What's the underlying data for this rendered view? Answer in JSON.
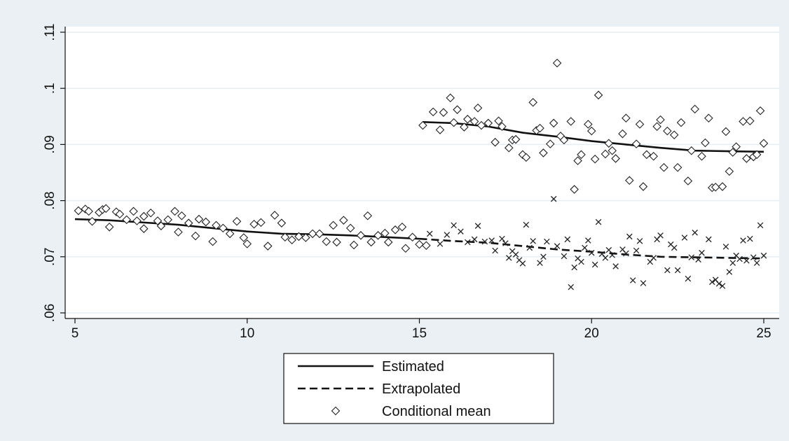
{
  "chart_data": {
    "type": "scatter",
    "title": "",
    "xlabel": "",
    "ylabel": "",
    "xlim": [
      5,
      25
    ],
    "ylim": [
      0.06,
      0.11
    ],
    "x_ticks": [
      5,
      10,
      15,
      20,
      25
    ],
    "x_tick_labels": [
      "5",
      "10",
      "15",
      "20",
      "25"
    ],
    "y_ticks": [
      0.06,
      0.07,
      0.08,
      0.09,
      0.1,
      0.11
    ],
    "y_tick_labels": [
      ".06",
      ".07",
      ".08",
      ".09",
      ".1",
      ".11"
    ],
    "grid": "horizontal",
    "legend_position": "bottom",
    "colors": {
      "outer_background": "#eaf0f3",
      "plot_background": "#ffffff",
      "grid": "#e6eef2",
      "ink": "#111111"
    },
    "series": [
      {
        "name": "Estimated",
        "style": "solid-line",
        "segments": [
          {
            "x": [
              5.0,
              6.0,
              7.0,
              8.0,
              9.0,
              10.0,
              11.0,
              12.0,
              13.0,
              14.0,
              15.0
            ],
            "y": [
              0.0767,
              0.0765,
              0.0761,
              0.0757,
              0.0751,
              0.0745,
              0.0741,
              0.074,
              0.0738,
              0.0735,
              0.0732
            ]
          },
          {
            "x": [
              15.1,
              16.0,
              17.0,
              18.0,
              19.0,
              20.0,
              21.0,
              22.0,
              23.0,
              24.0,
              25.0
            ],
            "y": [
              0.094,
              0.0938,
              0.0932,
              0.0921,
              0.0914,
              0.0906,
              0.09,
              0.0894,
              0.0889,
              0.0888,
              0.0887
            ]
          }
        ]
      },
      {
        "name": "Extrapolated",
        "style": "dashed-line",
        "x": [
          15.0,
          16.0,
          17.0,
          18.0,
          19.0,
          20.0,
          21.0,
          22.0,
          23.0,
          24.0,
          25.0
        ],
        "y": [
          0.0732,
          0.0728,
          0.0725,
          0.0719,
          0.0713,
          0.0709,
          0.0704,
          0.07,
          0.0699,
          0.0698,
          0.0697
        ]
      },
      {
        "name": "Conditional mean",
        "marker": "diamond",
        "points": [
          [
            5.1,
            0.0782
          ],
          [
            5.3,
            0.0785
          ],
          [
            5.4,
            0.0781
          ],
          [
            5.5,
            0.0763
          ],
          [
            5.7,
            0.0779
          ],
          [
            5.8,
            0.0784
          ],
          [
            5.9,
            0.0786
          ],
          [
            6.0,
            0.0753
          ],
          [
            6.2,
            0.078
          ],
          [
            6.3,
            0.0776
          ],
          [
            6.5,
            0.0766
          ],
          [
            6.7,
            0.0781
          ],
          [
            6.8,
            0.0764
          ],
          [
            7.0,
            0.0772
          ],
          [
            7.0,
            0.075
          ],
          [
            7.2,
            0.0778
          ],
          [
            7.4,
            0.0764
          ],
          [
            7.5,
            0.0755
          ],
          [
            7.7,
            0.0766
          ],
          [
            7.9,
            0.0781
          ],
          [
            8.0,
            0.0744
          ],
          [
            8.1,
            0.0773
          ],
          [
            8.3,
            0.076
          ],
          [
            8.5,
            0.0737
          ],
          [
            8.6,
            0.0767
          ],
          [
            8.8,
            0.0762
          ],
          [
            9.0,
            0.0727
          ],
          [
            9.1,
            0.0756
          ],
          [
            9.3,
            0.0751
          ],
          [
            9.5,
            0.0741
          ],
          [
            9.7,
            0.0763
          ],
          [
            9.9,
            0.0734
          ],
          [
            10.0,
            0.0723
          ],
          [
            10.2,
            0.0758
          ],
          [
            10.4,
            0.0761
          ],
          [
            10.6,
            0.0719
          ],
          [
            10.8,
            0.0774
          ],
          [
            11.0,
            0.076
          ],
          [
            11.1,
            0.0735
          ],
          [
            11.3,
            0.073
          ],
          [
            11.5,
            0.0736
          ],
          [
            11.7,
            0.0734
          ],
          [
            11.9,
            0.0741
          ],
          [
            12.1,
            0.0741
          ],
          [
            12.3,
            0.0727
          ],
          [
            12.5,
            0.0756
          ],
          [
            12.6,
            0.0726
          ],
          [
            12.8,
            0.0765
          ],
          [
            13.0,
            0.0751
          ],
          [
            13.1,
            0.0721
          ],
          [
            13.3,
            0.0738
          ],
          [
            13.5,
            0.0773
          ],
          [
            13.6,
            0.0726
          ],
          [
            13.8,
            0.0738
          ],
          [
            14.0,
            0.0742
          ],
          [
            14.1,
            0.0726
          ],
          [
            14.3,
            0.0748
          ],
          [
            14.5,
            0.0753
          ],
          [
            14.6,
            0.0715
          ],
          [
            14.8,
            0.0735
          ],
          [
            15.0,
            0.0722
          ],
          [
            15.2,
            0.072
          ],
          [
            15.1,
            0.0934
          ],
          [
            15.4,
            0.0958
          ],
          [
            15.6,
            0.0926
          ],
          [
            15.7,
            0.0957
          ],
          [
            15.9,
            0.0983
          ],
          [
            16.0,
            0.0939
          ],
          [
            16.1,
            0.0962
          ],
          [
            16.3,
            0.0931
          ],
          [
            16.4,
            0.0945
          ],
          [
            16.6,
            0.0941
          ],
          [
            16.7,
            0.0965
          ],
          [
            16.8,
            0.0934
          ],
          [
            17.0,
            0.0938
          ],
          [
            17.2,
            0.0904
          ],
          [
            17.3,
            0.0942
          ],
          [
            17.4,
            0.0932
          ],
          [
            17.6,
            0.0894
          ],
          [
            17.7,
            0.0908
          ],
          [
            17.8,
            0.0909
          ],
          [
            18.0,
            0.0882
          ],
          [
            18.1,
            0.0877
          ],
          [
            18.3,
            0.0975
          ],
          [
            18.4,
            0.0925
          ],
          [
            18.5,
            0.0929
          ],
          [
            18.6,
            0.0885
          ],
          [
            18.8,
            0.0901
          ],
          [
            18.9,
            0.0938
          ],
          [
            19.0,
            0.1045
          ],
          [
            19.1,
            0.0915
          ],
          [
            19.2,
            0.0908
          ],
          [
            19.4,
            0.0941
          ],
          [
            19.5,
            0.082
          ],
          [
            19.6,
            0.0871
          ],
          [
            19.7,
            0.0882
          ],
          [
            19.9,
            0.0936
          ],
          [
            20.0,
            0.0924
          ],
          [
            20.1,
            0.0874
          ],
          [
            20.2,
            0.0988
          ],
          [
            20.4,
            0.0883
          ],
          [
            20.5,
            0.0902
          ],
          [
            20.6,
            0.0889
          ],
          [
            20.7,
            0.0875
          ],
          [
            20.9,
            0.0919
          ],
          [
            21.0,
            0.0947
          ],
          [
            21.1,
            0.0836
          ],
          [
            21.3,
            0.0901
          ],
          [
            21.4,
            0.0936
          ],
          [
            21.5,
            0.0825
          ],
          [
            21.6,
            0.0882
          ],
          [
            21.8,
            0.0879
          ],
          [
            21.9,
            0.0932
          ],
          [
            22.0,
            0.0944
          ],
          [
            22.1,
            0.0859
          ],
          [
            22.2,
            0.0924
          ],
          [
            22.4,
            0.0917
          ],
          [
            22.5,
            0.0859
          ],
          [
            22.6,
            0.0939
          ],
          [
            22.8,
            0.0835
          ],
          [
            22.9,
            0.0889
          ],
          [
            23.0,
            0.0963
          ],
          [
            23.2,
            0.0879
          ],
          [
            23.3,
            0.0903
          ],
          [
            23.4,
            0.0947
          ],
          [
            23.5,
            0.0823
          ],
          [
            23.6,
            0.0824
          ],
          [
            23.8,
            0.0825
          ],
          [
            23.9,
            0.0923
          ],
          [
            24.0,
            0.0852
          ],
          [
            24.1,
            0.0886
          ],
          [
            24.2,
            0.0896
          ],
          [
            24.4,
            0.0941
          ],
          [
            24.5,
            0.0875
          ],
          [
            24.6,
            0.0942
          ],
          [
            24.7,
            0.0878
          ],
          [
            24.8,
            0.0882
          ],
          [
            24.9,
            0.096
          ],
          [
            25.0,
            0.0902
          ]
        ]
      },
      {
        "marker": "x",
        "points": [
          [
            15.3,
            0.0741
          ],
          [
            15.6,
            0.0723
          ],
          [
            15.8,
            0.0739
          ],
          [
            16.0,
            0.0756
          ],
          [
            16.2,
            0.0745
          ],
          [
            16.4,
            0.0726
          ],
          [
            16.6,
            0.0731
          ],
          [
            16.7,
            0.0755
          ],
          [
            16.9,
            0.0727
          ],
          [
            17.1,
            0.0729
          ],
          [
            17.2,
            0.0711
          ],
          [
            17.4,
            0.0732
          ],
          [
            17.5,
            0.0724
          ],
          [
            17.6,
            0.0698
          ],
          [
            17.7,
            0.071
          ],
          [
            17.8,
            0.0704
          ],
          [
            17.9,
            0.0694
          ],
          [
            18.0,
            0.0688
          ],
          [
            18.1,
            0.0757
          ],
          [
            18.2,
            0.0716
          ],
          [
            18.3,
            0.0728
          ],
          [
            18.5,
            0.0689
          ],
          [
            18.6,
            0.07
          ],
          [
            18.7,
            0.0727
          ],
          [
            18.9,
            0.0803
          ],
          [
            19.0,
            0.0719
          ],
          [
            19.2,
            0.0701
          ],
          [
            19.3,
            0.0731
          ],
          [
            19.4,
            0.0646
          ],
          [
            19.5,
            0.0681
          ],
          [
            19.6,
            0.0697
          ],
          [
            19.7,
            0.0691
          ],
          [
            19.8,
            0.0716
          ],
          [
            19.9,
            0.0729
          ],
          [
            20.0,
            0.0707
          ],
          [
            20.1,
            0.0686
          ],
          [
            20.2,
            0.0762
          ],
          [
            20.3,
            0.0705
          ],
          [
            20.4,
            0.0698
          ],
          [
            20.5,
            0.0712
          ],
          [
            20.6,
            0.0703
          ],
          [
            20.7,
            0.0683
          ],
          [
            20.9,
            0.0713
          ],
          [
            21.0,
            0.0706
          ],
          [
            21.1,
            0.0736
          ],
          [
            21.2,
            0.0658
          ],
          [
            21.3,
            0.0711
          ],
          [
            21.4,
            0.0728
          ],
          [
            21.5,
            0.0653
          ],
          [
            21.7,
            0.0691
          ],
          [
            21.8,
            0.0698
          ],
          [
            21.9,
            0.0731
          ],
          [
            22.0,
            0.0738
          ],
          [
            22.2,
            0.0676
          ],
          [
            22.3,
            0.0722
          ],
          [
            22.4,
            0.0716
          ],
          [
            22.5,
            0.0676
          ],
          [
            22.7,
            0.0734
          ],
          [
            22.8,
            0.0661
          ],
          [
            22.9,
            0.0699
          ],
          [
            23.0,
            0.0743
          ],
          [
            23.1,
            0.0695
          ],
          [
            23.2,
            0.0707
          ],
          [
            23.4,
            0.0731
          ],
          [
            23.5,
            0.0655
          ],
          [
            23.6,
            0.0659
          ],
          [
            23.7,
            0.0652
          ],
          [
            23.8,
            0.0648
          ],
          [
            23.9,
            0.0718
          ],
          [
            24.0,
            0.0673
          ],
          [
            24.1,
            0.0689
          ],
          [
            24.2,
            0.0702
          ],
          [
            24.3,
            0.0696
          ],
          [
            24.4,
            0.0729
          ],
          [
            24.5,
            0.0693
          ],
          [
            24.6,
            0.0732
          ],
          [
            24.7,
            0.0699
          ],
          [
            24.8,
            0.0689
          ],
          [
            24.9,
            0.0756
          ],
          [
            25.0,
            0.0702
          ]
        ]
      }
    ],
    "legend": [
      {
        "label": "Estimated",
        "symbol": "solid-line"
      },
      {
        "label": "Extrapolated",
        "symbol": "dashed-line"
      },
      {
        "label": "Conditional mean",
        "symbol": "diamond"
      }
    ]
  }
}
